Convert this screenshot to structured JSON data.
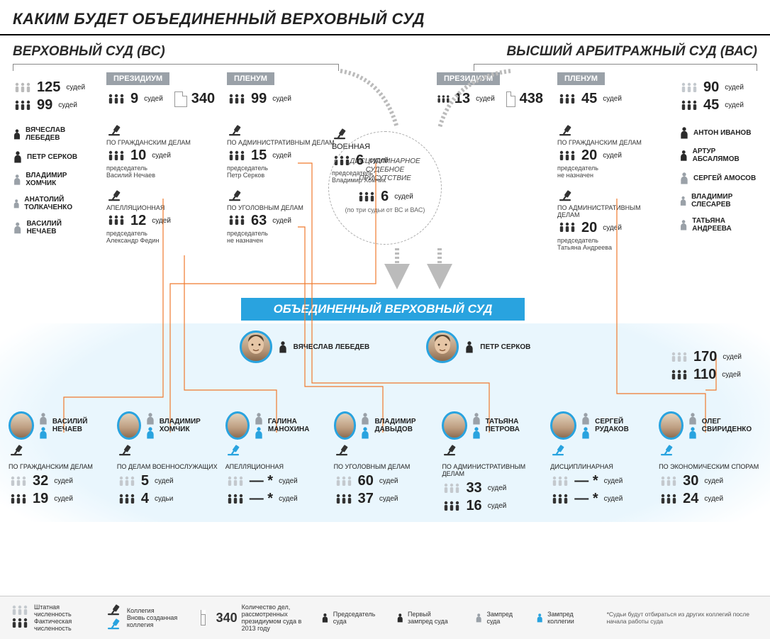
{
  "colors": {
    "accent": "#29a3df",
    "orange": "#f07a2e",
    "grey_badge": "#9aa1a8",
    "text": "#222222",
    "muted": "#888888",
    "wave_bg": "#e9f6fd"
  },
  "title": "КАКИМ БУДЕТ ОБЪЕДИНЕННЫЙ ВЕРХОВНЫЙ СУД",
  "vs": {
    "title": "ВЕРХОВНЫЙ СУД (ВС)",
    "staff": {
      "planned": 125,
      "actual": 99,
      "unit": "судей"
    },
    "presidium": {
      "label": "ПРЕЗИДИУМ",
      "judges": 9,
      "cases": 340,
      "unit": "судей"
    },
    "plenum": {
      "label": "ПЛЕНУМ",
      "judges": 99,
      "unit": "судей"
    },
    "people": [
      {
        "name": "ВЯЧЕСЛАВ ЛЕБЕДЕВ",
        "role": "chair"
      },
      {
        "name": "ПЕТР СЕРКОВ",
        "role": "first-deputy"
      },
      {
        "name": "ВЛАДИМИР ХОМЧИК",
        "role": "deputy"
      },
      {
        "name": "АНАТОЛИЙ ТОЛКАЧЕНКО",
        "role": "deputy"
      },
      {
        "name": "ВАСИЛИЙ НЕЧАЕВ",
        "role": "deputy"
      }
    ],
    "collegia": [
      {
        "name": "ПО ГРАЖДАНСКИМ ДЕЛАМ",
        "judges": 10,
        "chair_label": "председатель",
        "chair": "Василий Нечаев"
      },
      {
        "name": "АПЕЛЛЯЦИОННАЯ",
        "judges": 12,
        "chair_label": "председатель",
        "chair": "Александр Федин"
      },
      {
        "name": "ПО АДМИНИСТРАТИВНЫМ ДЕЛАМ",
        "judges": 15,
        "chair_label": "председатель",
        "chair": "Петр Серков"
      },
      {
        "name": "ПО УГОЛОВНЫМ ДЕЛАМ",
        "judges": 63,
        "chair_label": "председатель",
        "chair": "не назначен"
      },
      {
        "name": "ВОЕННАЯ",
        "judges": 6,
        "chair_label": "председатель",
        "chair": "Владимир Хомчик"
      }
    ]
  },
  "vas": {
    "title": "ВЫСШИЙ АРБИТРАЖНЫЙ СУД (ВАС)",
    "staff": {
      "planned": 90,
      "actual": 45,
      "unit": "судей"
    },
    "presidium": {
      "label": "ПРЕЗИДИУМ",
      "judges": 13,
      "cases": 438,
      "unit": "судей"
    },
    "plenum": {
      "label": "ПЛЕНУМ",
      "judges": 45,
      "unit": "судей"
    },
    "people": [
      {
        "name": "АНТОН ИВАНОВ",
        "role": "chair"
      },
      {
        "name": "АРТУР АБСАЛЯМОВ",
        "role": "first-deputy"
      },
      {
        "name": "СЕРГЕЙ АМОСОВ",
        "role": "deputy"
      },
      {
        "name": "ВЛАДИМИР СЛЕСАРЕВ",
        "role": "deputy"
      },
      {
        "name": "ТАТЬЯНА АНДРЕЕВА",
        "role": "deputy"
      }
    ],
    "collegia": [
      {
        "name": "ПО ГРАЖДАНСКИМ ДЕЛАМ",
        "judges": 20,
        "chair_label": "председатель",
        "chair": "не назначен"
      },
      {
        "name": "ПО АДМИНИСТРАТИВНЫМ ДЕЛАМ",
        "judges": 20,
        "chair_label": "председатель",
        "chair": "Татьяна Андреева"
      }
    ]
  },
  "disciplinary": {
    "title1": "ДИСЦИПЛИНАРНОЕ",
    "title2": "СУДЕБНОЕ",
    "title3": "ПРИСУТСТВИЕ",
    "judges": 6,
    "unit": "судей",
    "note": "(по три судьи от ВС и ВАС)"
  },
  "unified": {
    "banner": "ОБЪЕДИНЕННЫЙ ВЕРХОВНЫЙ СУД",
    "leaders": [
      {
        "name": "ВЯЧЕСЛАВ ЛЕБЕДЕВ",
        "role": "chair"
      },
      {
        "name": "ПЕТР СЕРКОВ",
        "role": "first-deputy"
      }
    ],
    "totals": {
      "planned": 170,
      "actual": 110,
      "unit": "судей"
    },
    "collegia": [
      {
        "chair": "ВАСИЛИЙ НЕЧАЕВ",
        "dept": "ПО ГРАЖДАНСКИМ ДЕЛАМ",
        "planned": 32,
        "actual": 19
      },
      {
        "chair": "ВЛАДИМИР ХОМЧИК",
        "dept": "ПО ДЕЛАМ ВОЕННОСЛУЖАЩИХ",
        "planned": 5,
        "actual": 4,
        "actual_unit": "судьи"
      },
      {
        "chair": "ГАЛИНА МАНОХИНА",
        "dept": "АПЕЛЛЯЦИОННАЯ",
        "planned": "— *",
        "actual": "— *",
        "new": true
      },
      {
        "chair": "ВЛАДИМИР ДАВЫДОВ",
        "dept": "ПО УГОЛОВНЫМ ДЕЛАМ",
        "planned": 60,
        "actual": 37
      },
      {
        "chair": "ТАТЬЯНА ПЕТРОВА",
        "dept": "ПО АДМИНИСТРАТИВНЫМ ДЕЛАМ",
        "planned": 33,
        "actual": 16
      },
      {
        "chair": "СЕРГЕЙ РУДАКОВ",
        "dept": "ДИСЦИПЛИНАРНАЯ",
        "planned": "— *",
        "actual": "— *",
        "new": true
      },
      {
        "chair": "ОЛЕГ СВИРИДЕНКО",
        "dept": "ПО ЭКОНОМИЧЕСКИМ СПОРАМ",
        "planned": 30,
        "actual": 24,
        "new": true
      }
    ]
  },
  "legend": {
    "planned": "Штатная численность",
    "actual": "Фактическая численность",
    "collegium": "Коллегия",
    "new_collegium": "Вновь созданная коллегия",
    "cases_n": "340",
    "cases": "Количество дел, рассмотренных президиумом суда в 2013 году",
    "chair": "Председатель суда",
    "first_deputy": "Первый зампред суда",
    "deputy": "Зампред суда",
    "coll_chair": "Зампред коллегии",
    "footnote": "*Судьи будут отбираться из других коллегий после начала работы суда"
  }
}
